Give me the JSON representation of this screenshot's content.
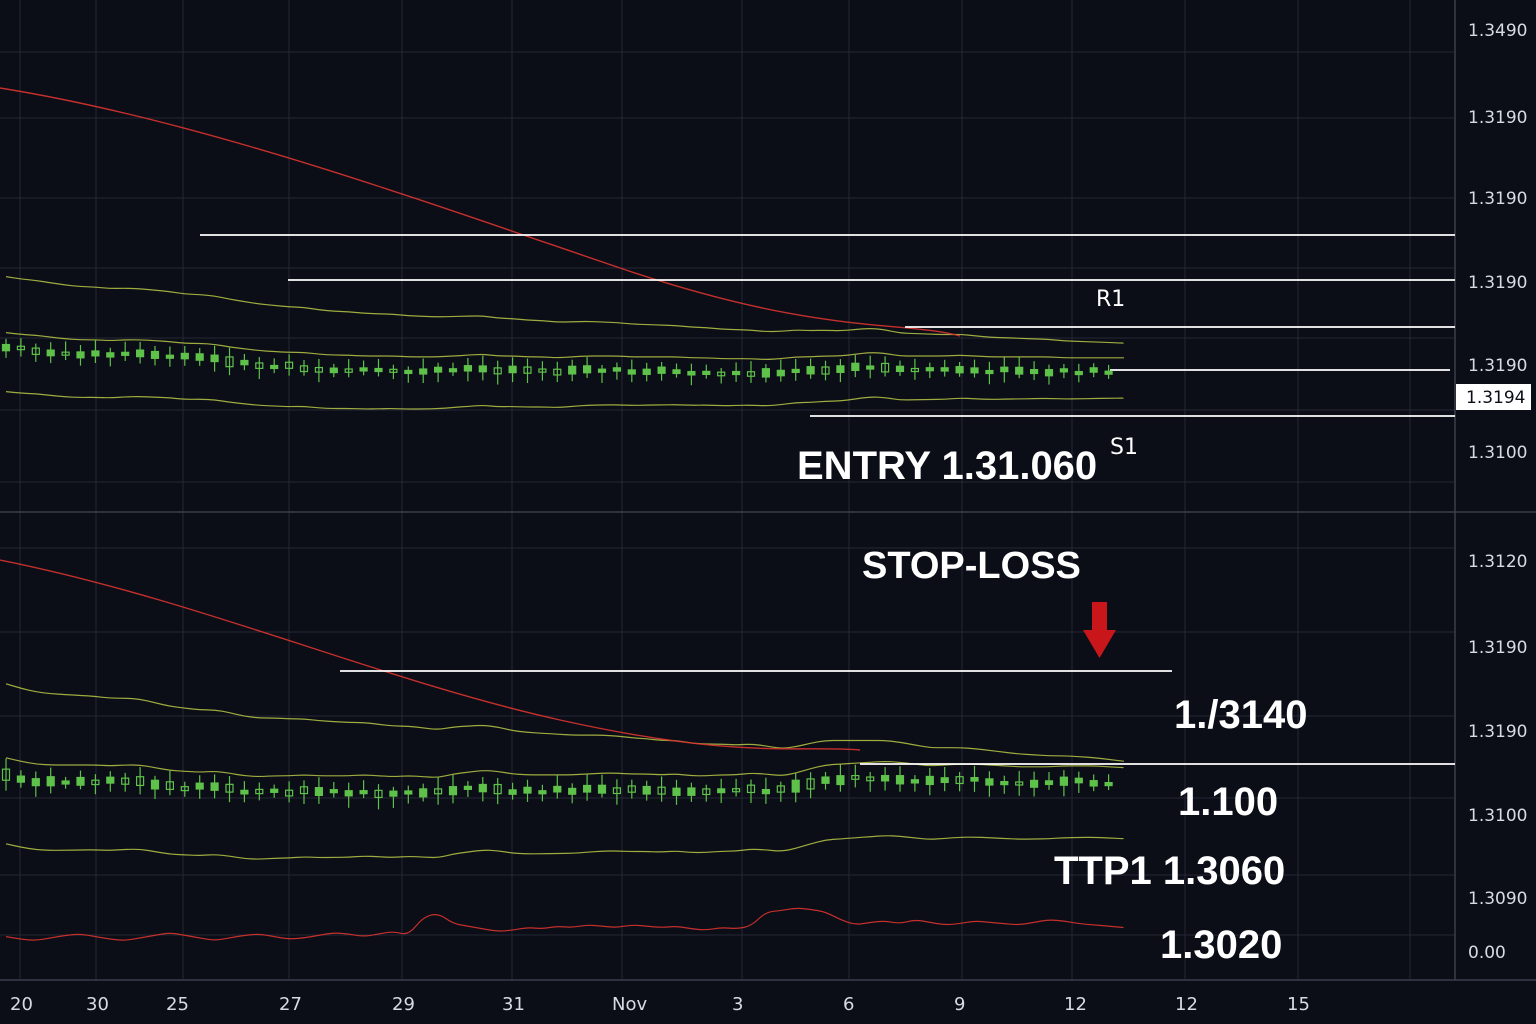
{
  "chart_data": {
    "type": "candlestick",
    "grid": true,
    "colors": {
      "background": "#0b0d17",
      "grid": "#252935",
      "candle": "#5ec24a",
      "band": "#b9c947",
      "ma": "#d8342f",
      "level_line": "#ffffff",
      "arrow": "#c8161b"
    },
    "x_labels": [
      "20",
      "30",
      "25",
      "27",
      "29",
      "31",
      "Nov",
      "3",
      "6",
      "9",
      "12",
      "12",
      "15"
    ],
    "y_labels": [
      "1.3490",
      "1.3190",
      "1.3190",
      "1.3190",
      "1.3190",
      "1.3100",
      "1.3120",
      "1.3190",
      "1.3190",
      "1.3100",
      "1.3090",
      "0.00"
    ],
    "current_price": "1.3194",
    "levels": [
      {
        "name": "R1",
        "label": "R1"
      },
      {
        "name": "S1",
        "label": "S1"
      }
    ],
    "annotations": {
      "entry": "ENTRY 1.31.060",
      "stop_loss": "STOP-LOSS",
      "tp_a": "1./3140",
      "tp_b": "1.100",
      "tp_c": "TTP1  1.3060",
      "tp_d": "1.3020"
    },
    "top_series": [
      1.3192,
      1.319,
      1.3189,
      1.3187,
      1.3185,
      1.3184,
      1.3184,
      1.3183,
      1.3184,
      1.3184,
      1.3183,
      1.3182,
      1.318,
      1.318,
      1.3179,
      1.3176,
      1.3174,
      1.3172,
      1.3171,
      1.317,
      1.317,
      1.3168,
      1.3167,
      1.3167,
      1.3166,
      1.3166,
      1.3166,
      1.3165,
      1.3165,
      1.3165,
      1.3166,
      1.3167,
      1.3168,
      1.3166,
      1.3166,
      1.3165,
      1.3165,
      1.3164,
      1.3165,
      1.3166,
      1.3166,
      1.3166,
      1.3165,
      1.3165,
      1.3165,
      1.3165,
      1.3164,
      1.3164,
      1.3163,
      1.3163,
      1.3163,
      1.3162,
      1.3163,
      1.3165,
      1.3165,
      1.3166,
      1.3166,
      1.3168,
      1.317,
      1.3169,
      1.3166,
      1.3166,
      1.3166,
      1.3166,
      1.3167,
      1.3166,
      1.3165,
      1.3165,
      1.3165,
      1.3165,
      1.3165,
      1.3164,
      1.3164,
      1.3164,
      1.3164,
      1.3164
    ],
    "bottom_series": [
      1.3192,
      1.3188,
      1.3185,
      1.3184,
      1.3184,
      1.3184,
      1.3184,
      1.3183,
      1.3184,
      1.3184,
      1.3181,
      1.3178,
      1.3177,
      1.3176,
      1.3177,
      1.3175,
      1.3172,
      1.3171,
      1.3172,
      1.3172,
      1.3173,
      1.3172,
      1.3172,
      1.3172,
      1.3173,
      1.3172,
      1.3171,
      1.3172,
      1.3171,
      1.317,
      1.3174,
      1.3176,
      1.3178,
      1.3177,
      1.3174,
      1.3173,
      1.3173,
      1.3173,
      1.3173,
      1.3174,
      1.3175,
      1.3175,
      1.3174,
      1.3174,
      1.3173,
      1.3174,
      1.3172,
      1.3172,
      1.3173,
      1.3173,
      1.3175,
      1.3174,
      1.3172,
      1.3175,
      1.318,
      1.3184,
      1.3185,
      1.3186,
      1.3187,
      1.3188,
      1.3187,
      1.3185,
      1.3183,
      1.3184,
      1.3185,
      1.3185,
      1.3184,
      1.3183,
      1.3182,
      1.3182,
      1.3182,
      1.3183,
      1.3183,
      1.3183,
      1.3182,
      1.3181
    ],
    "oscillator": [
      0.18,
      0.16,
      0.15,
      0.17,
      0.19,
      0.2,
      0.18,
      0.16,
      0.15,
      0.17,
      0.19,
      0.21,
      0.19,
      0.17,
      0.15,
      0.17,
      0.19,
      0.2,
      0.18,
      0.16,
      0.17,
      0.19,
      0.21,
      0.2,
      0.18,
      0.2,
      0.22,
      0.19,
      0.33,
      0.36,
      0.28,
      0.26,
      0.24,
      0.22,
      0.23,
      0.25,
      0.24,
      0.26,
      0.25,
      0.27,
      0.26,
      0.25,
      0.27,
      0.26,
      0.25,
      0.26,
      0.24,
      0.23,
      0.25,
      0.24,
      0.26,
      0.37,
      0.38,
      0.4,
      0.39,
      0.37,
      0.31,
      0.27,
      0.29,
      0.3,
      0.28,
      0.31,
      0.29,
      0.27,
      0.28,
      0.3,
      0.29,
      0.28,
      0.27,
      0.29,
      0.31,
      0.3,
      0.28,
      0.27,
      0.26,
      0.25
    ]
  }
}
